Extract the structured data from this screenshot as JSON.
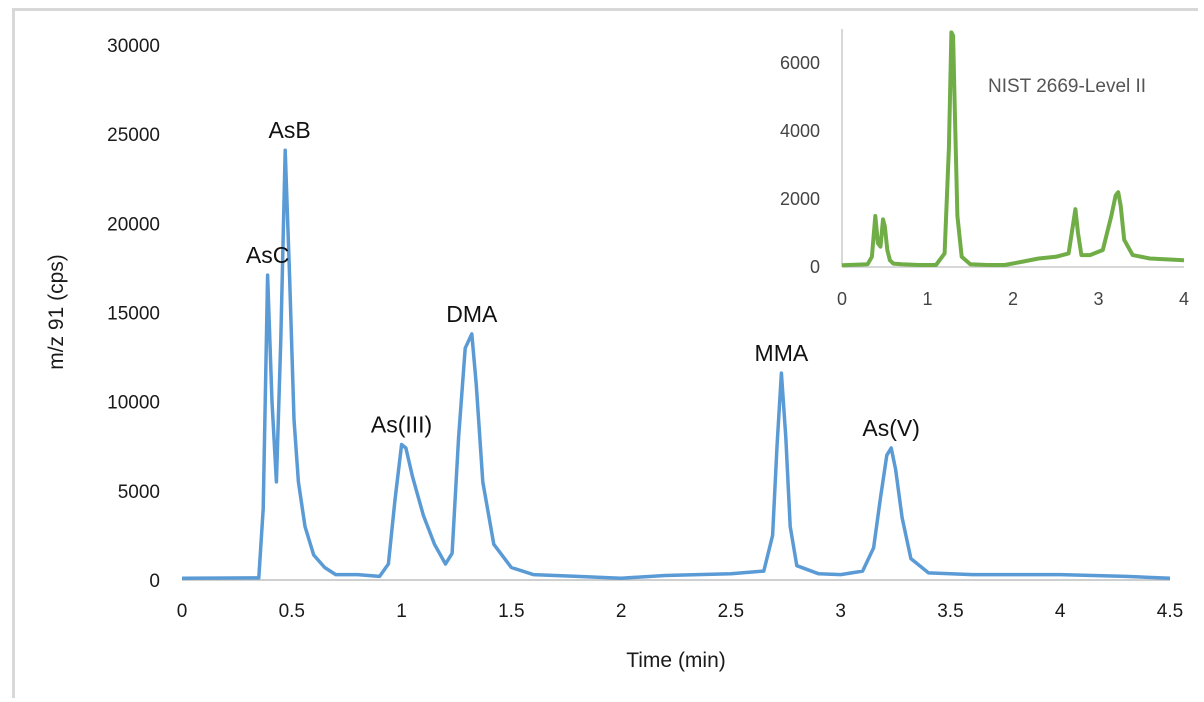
{
  "chart_data": [
    {
      "type": "line",
      "xlabel": "Time (min)",
      "ylabel": "m/z 91 (cps)",
      "xlim": [
        0,
        4.5
      ],
      "ylim": [
        0,
        30000
      ],
      "x_ticks": [
        "0",
        "0.5",
        "1",
        "1.5",
        "2",
        "2.5",
        "3",
        "3.5",
        "4",
        "4.5"
      ],
      "y_ticks": [
        "0",
        "5000",
        "10000",
        "15000",
        "20000",
        "25000",
        "30000"
      ],
      "grid": false,
      "color": "#5b9bd5",
      "series": [
        {
          "x": [
            0,
            0.35,
            0.37,
            0.39,
            0.41,
            0.43,
            0.45,
            0.47,
            0.49,
            0.51,
            0.53,
            0.56,
            0.6,
            0.65,
            0.7,
            0.8,
            0.9,
            0.94,
            0.97,
            1.0,
            1.02,
            1.05,
            1.1,
            1.15,
            1.2,
            1.23,
            1.26,
            1.29,
            1.32,
            1.34,
            1.37,
            1.42,
            1.5,
            1.6,
            1.8,
            2.0,
            2.2,
            2.5,
            2.65,
            2.69,
            2.71,
            2.73,
            2.75,
            2.77,
            2.8,
            2.9,
            3.0,
            3.1,
            3.15,
            3.18,
            3.21,
            3.23,
            3.25,
            3.28,
            3.32,
            3.4,
            3.6,
            4.0,
            4.3,
            4.5
          ],
          "y": [
            100,
            120,
            4000,
            17100,
            10000,
            5500,
            13500,
            24100,
            17000,
            9000,
            5500,
            3000,
            1400,
            700,
            300,
            300,
            200,
            900,
            4500,
            7600,
            7400,
            5800,
            3600,
            2000,
            900,
            1500,
            8000,
            13000,
            13800,
            11000,
            5500,
            2000,
            700,
            300,
            200,
            100,
            250,
            350,
            500,
            2500,
            7500,
            11600,
            8000,
            3000,
            800,
            350,
            300,
            500,
            1800,
            4500,
            7000,
            7400,
            6200,
            3500,
            1200,
            400,
            300,
            300,
            200,
            100
          ]
        }
      ],
      "annotations": [
        {
          "text": "AsC",
          "x": 0.39,
          "y": 17100
        },
        {
          "text": "AsB",
          "x": 0.49,
          "y": 24100
        },
        {
          "text": "As(III)",
          "x": 1.0,
          "y": 7600
        },
        {
          "text": "DMA",
          "x": 1.32,
          "y": 13800
        },
        {
          "text": "MMA",
          "x": 2.73,
          "y": 11600
        },
        {
          "text": "As(V)",
          "x": 3.23,
          "y": 7400
        }
      ]
    },
    {
      "type": "line",
      "title": "NIST 2669-Level II",
      "xlim": [
        0,
        4
      ],
      "ylim": [
        0,
        7000
      ],
      "x_ticks": [
        "0",
        "1",
        "2",
        "3",
        "4"
      ],
      "y_ticks": [
        "0",
        "2000",
        "4000",
        "6000"
      ],
      "grid": false,
      "color": "#70ad47",
      "series": [
        {
          "x": [
            0,
            0.3,
            0.35,
            0.39,
            0.42,
            0.45,
            0.48,
            0.5,
            0.53,
            0.56,
            0.6,
            0.7,
            0.9,
            1.1,
            1.2,
            1.25,
            1.28,
            1.3,
            1.32,
            1.35,
            1.4,
            1.5,
            1.7,
            1.9,
            2.1,
            2.3,
            2.5,
            2.65,
            2.7,
            2.73,
            2.76,
            2.8,
            2.9,
            3.05,
            3.15,
            3.2,
            3.23,
            3.26,
            3.3,
            3.4,
            3.6,
            4.0
          ],
          "y": [
            50,
            80,
            300,
            1500,
            700,
            600,
            1400,
            1200,
            500,
            200,
            100,
            80,
            60,
            60,
            400,
            3500,
            6900,
            6800,
            4500,
            1500,
            300,
            80,
            60,
            60,
            150,
            250,
            300,
            400,
            1200,
            1700,
            1000,
            350,
            350,
            500,
            1500,
            2100,
            2200,
            1800,
            800,
            350,
            250,
            200
          ]
        }
      ]
    }
  ]
}
